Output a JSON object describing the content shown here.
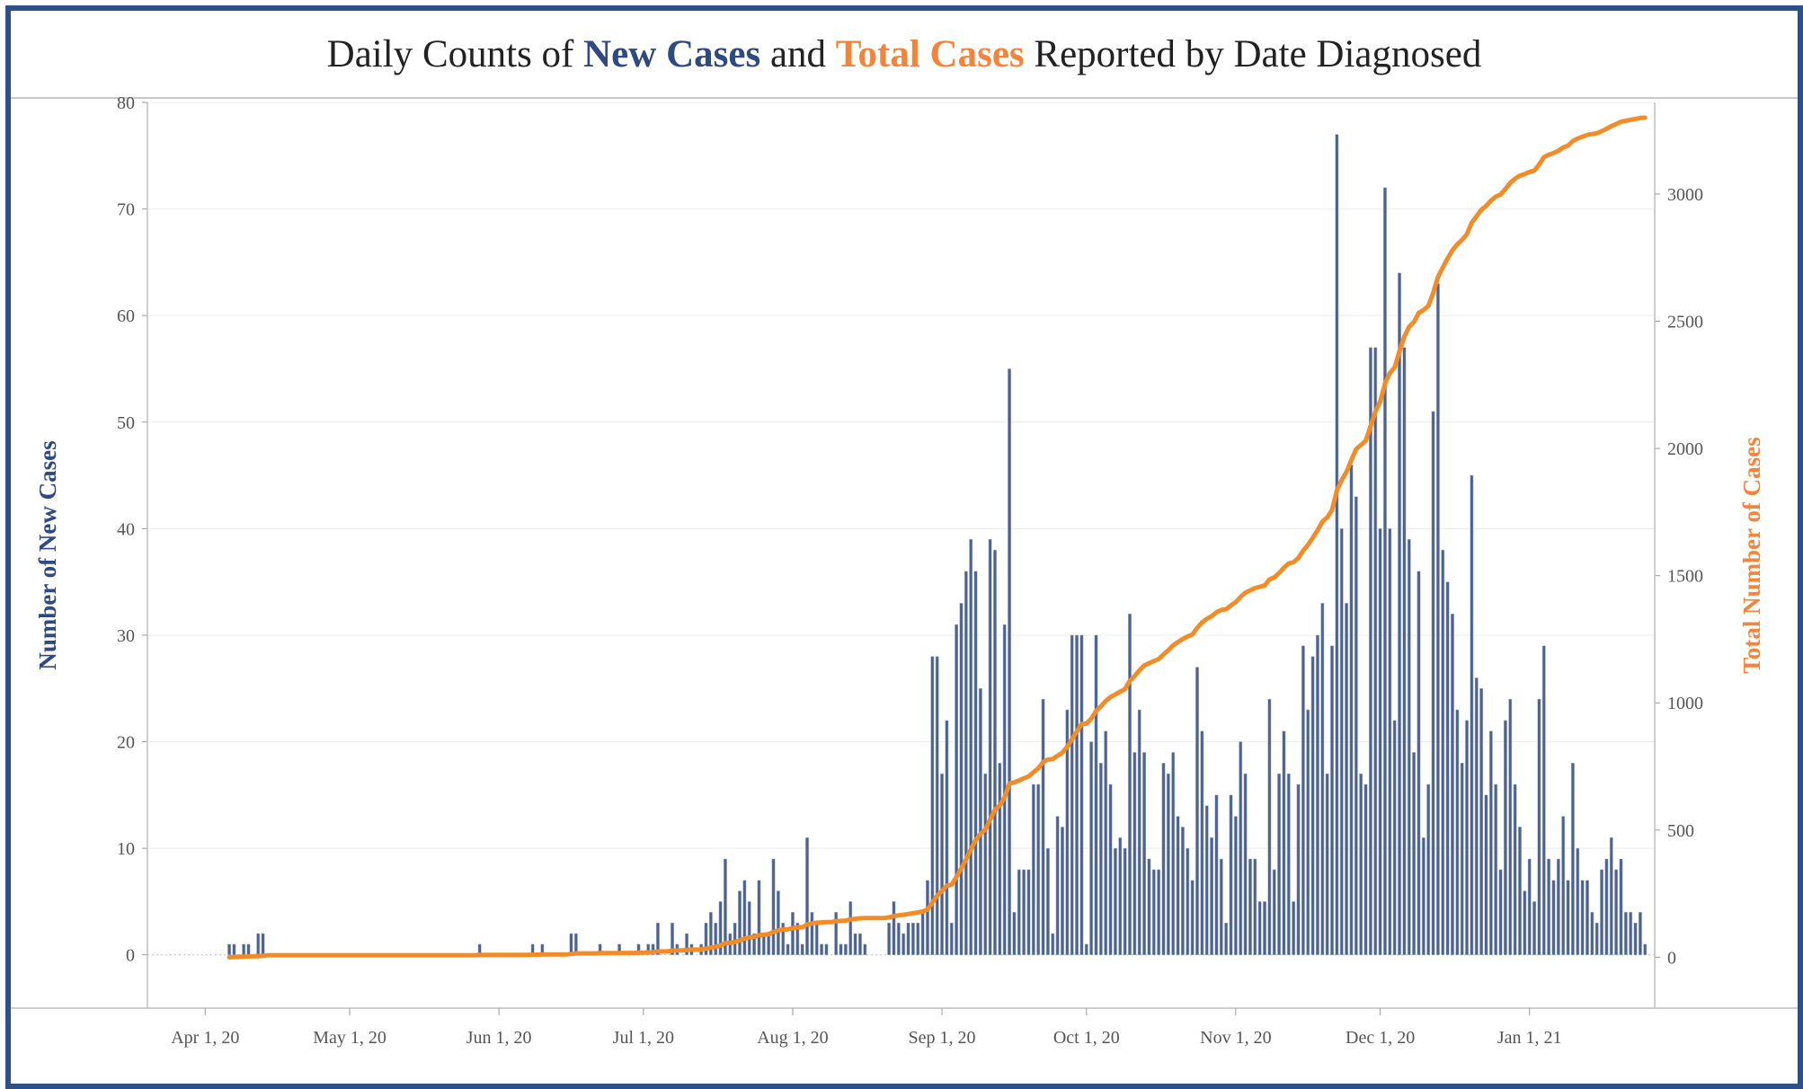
{
  "title": {
    "prefix": "Daily Counts of ",
    "series1": "New Cases",
    "middle": " and ",
    "series2": "Total Cases",
    "suffix": " Reported by Date Diagnosed"
  },
  "colors": {
    "bar": "#4c6391",
    "line": "#f28c28",
    "frame": "#2e5086",
    "left_title": "#2e4a7f",
    "right_title": "#f4843a"
  },
  "chart_data": {
    "type": "bar+line",
    "title": "Daily Counts of New Cases and Total Cases Reported by Date Diagnosed",
    "x_range": [
      "2020-03-20",
      "2021-01-27"
    ],
    "x_ticks": [
      {
        "date": "2020-04-01",
        "label": "Apr 1, 20"
      },
      {
        "date": "2020-05-01",
        "label": "May 1, 20"
      },
      {
        "date": "2020-06-01",
        "label": "Jun 1, 20"
      },
      {
        "date": "2020-07-01",
        "label": "Jul 1, 20"
      },
      {
        "date": "2020-08-01",
        "label": "Aug 1, 20"
      },
      {
        "date": "2020-09-01",
        "label": "Sep 1, 20"
      },
      {
        "date": "2020-10-01",
        "label": "Oct 1, 20"
      },
      {
        "date": "2020-11-01",
        "label": "Nov 1, 20"
      },
      {
        "date": "2020-12-01",
        "label": "Dec 1, 20"
      },
      {
        "date": "2021-01-01",
        "label": "Jan 1, 21"
      }
    ],
    "y_left": {
      "label": "Number of New Cases",
      "range": [
        -5,
        80
      ],
      "ticks": [
        0,
        10,
        20,
        30,
        40,
        50,
        60,
        70,
        80
      ]
    },
    "y_right": {
      "label": "Total Number of Cases",
      "range": [
        -200,
        3360
      ],
      "ticks": [
        0,
        500,
        1000,
        1500,
        2000,
        2500,
        3000
      ]
    },
    "bars_start_date": "2020-04-06",
    "new_cases": [
      1,
      1,
      0,
      1,
      1,
      0,
      2,
      2,
      0,
      0,
      0,
      0,
      0,
      0,
      0,
      0,
      0,
      0,
      0,
      0,
      0,
      0,
      0,
      0,
      0,
      0,
      0,
      0,
      0,
      0,
      0,
      0,
      0,
      0,
      0,
      0,
      0,
      0,
      0,
      0,
      0,
      0,
      0,
      0,
      0,
      0,
      0,
      0,
      0,
      0,
      0,
      0,
      1,
      0,
      0,
      0,
      0,
      0,
      0,
      0,
      0,
      0,
      0,
      1,
      0,
      1,
      0,
      0,
      0,
      0,
      0,
      2,
      2,
      0,
      0,
      0,
      0,
      1,
      0,
      0,
      0,
      1,
      0,
      0,
      0,
      1,
      0,
      1,
      1,
      3,
      0,
      0,
      3,
      1,
      0,
      2,
      1,
      0,
      1,
      3,
      4,
      3,
      5,
      9,
      2,
      3,
      6,
      7,
      5,
      2,
      7,
      2,
      2,
      9,
      6,
      3,
      1,
      4,
      3,
      1,
      11,
      4,
      3,
      1,
      1,
      0,
      4,
      1,
      1,
      5,
      2,
      2,
      1,
      0,
      0,
      0,
      0,
      3,
      5,
      3,
      2,
      3,
      3,
      3,
      4,
      7,
      28,
      28,
      17,
      22,
      3,
      31,
      33,
      36,
      39,
      36,
      25,
      17,
      39,
      38,
      18,
      31,
      55,
      4,
      8,
      8,
      8,
      16,
      16,
      24,
      10,
      2,
      13,
      12,
      23,
      30,
      30,
      30,
      1,
      20,
      30,
      18,
      21,
      16,
      10,
      11,
      10,
      32,
      19,
      23,
      19,
      9,
      8,
      8,
      18,
      17,
      19,
      13,
      12,
      10,
      7,
      27,
      21,
      14,
      11,
      15,
      9,
      3,
      15,
      13,
      20,
      17,
      9,
      9,
      5,
      5,
      24,
      8,
      17,
      21,
      17,
      5,
      16,
      29,
      23,
      28,
      30,
      33,
      17,
      29,
      77,
      40,
      33,
      46,
      43,
      17,
      16,
      57,
      57,
      40,
      72,
      40,
      22,
      64,
      57,
      39,
      19,
      36,
      11,
      16,
      51,
      63,
      38,
      35,
      32,
      23,
      18,
      22,
      45,
      26,
      25,
      15,
      21,
      16,
      8,
      22,
      24,
      16,
      12,
      6,
      9,
      5,
      24,
      29,
      9,
      7,
      9,
      13,
      7,
      18,
      10,
      7,
      7,
      4,
      3,
      8,
      9,
      11,
      8,
      9,
      4,
      4,
      3,
      4,
      1
    ],
    "total_cases": [
      0,
      1,
      2,
      2,
      3,
      4,
      4,
      6,
      8,
      8,
      8,
      8,
      8,
      8,
      8,
      8,
      8,
      8,
      8,
      8,
      8,
      8,
      8,
      8,
      8,
      8,
      8,
      8,
      8,
      8,
      8,
      8,
      8,
      8,
      8,
      8,
      8,
      8,
      8,
      8,
      8,
      8,
      8,
      8,
      8,
      8,
      8,
      8,
      8,
      8,
      8,
      8,
      9,
      9,
      9,
      9,
      9,
      9,
      9,
      9,
      9,
      9,
      9,
      10,
      10,
      11,
      11,
      11,
      11,
      11,
      11,
      13,
      15,
      15,
      15,
      15,
      15,
      16,
      16,
      16,
      16,
      17,
      17,
      17,
      17,
      18,
      18,
      19,
      20,
      23,
      23,
      23,
      26,
      27,
      27,
      29,
      30,
      30,
      31,
      34,
      38,
      41,
      46,
      55,
      57,
      60,
      66,
      73,
      78,
      80,
      87,
      89,
      91,
      100,
      106,
      109,
      110,
      114,
      117,
      118,
      129,
      133,
      136,
      137,
      138,
      138,
      142,
      143,
      144,
      149,
      151,
      153,
      154,
      154,
      154,
      154,
      154,
      157,
      162,
      165,
      167,
      170,
      173,
      176,
      180,
      187,
      215,
      243,
      260,
      282,
      285,
      316,
      349,
      385,
      424,
      460,
      485,
      502,
      541,
      579,
      597,
      628,
      683,
      687,
      695,
      703,
      711,
      727,
      743,
      767,
      777,
      779,
      792,
      804,
      827,
      857,
      887,
      917,
      918,
      938,
      968,
      986,
      1007,
      1023,
      1033,
      1044,
      1054,
      1086,
      1105,
      1128,
      1147,
      1156,
      1164,
      1172,
      1190,
      1207,
      1226,
      1239,
      1251,
      1261,
      1268,
      1295,
      1316,
      1330,
      1341,
      1356,
      1365,
      1368,
      1383,
      1396,
      1416,
      1433,
      1442,
      1451,
      1456,
      1461,
      1485,
      1493,
      1510,
      1531,
      1548,
      1553,
      1569,
      1598,
      1621,
      1649,
      1679,
      1712,
      1729,
      1758,
      1835,
      1875,
      1908,
      1954,
      1997,
      2014,
      2030,
      2087,
      2144,
      2184,
      2256,
      2296,
      2318,
      2382,
      2439,
      2478,
      2497,
      2533,
      2544,
      2560,
      2611,
      2674,
      2712,
      2747,
      2779,
      2802,
      2820,
      2842,
      2887,
      2913,
      2938,
      2953,
      2974,
      2990,
      2998,
      3020,
      3044,
      3060,
      3072,
      3078,
      3087,
      3092,
      3116,
      3145,
      3154,
      3161,
      3170,
      3183,
      3190,
      3208,
      3218,
      3225,
      3232,
      3236,
      3239,
      3247,
      3256,
      3267,
      3275,
      3284,
      3288,
      3292,
      3295,
      3299,
      3300
    ]
  }
}
